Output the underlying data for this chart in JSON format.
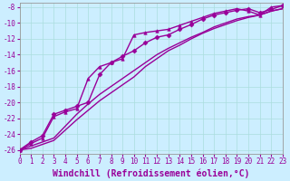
{
  "xlabel": "Windchill (Refroidissement éolien,°C)",
  "bg_color": "#cceeff",
  "line_color": "#990099",
  "xlim": [
    0,
    23
  ],
  "ylim": [
    -26.5,
    -7.5
  ],
  "xticks": [
    0,
    1,
    2,
    3,
    4,
    5,
    6,
    7,
    8,
    9,
    10,
    11,
    12,
    13,
    14,
    15,
    16,
    17,
    18,
    19,
    20,
    21,
    22,
    23
  ],
  "yticks": [
    -26,
    -24,
    -22,
    -20,
    -18,
    -16,
    -14,
    -12,
    -10,
    -8
  ],
  "series": [
    {
      "x": [
        0,
        1,
        2,
        3,
        4,
        5,
        6,
        7,
        8,
        9,
        10,
        11,
        12,
        13,
        14,
        15,
        16,
        17,
        18,
        19,
        20,
        21,
        22,
        23
      ],
      "y": [
        -26,
        -25.5,
        -25.0,
        -24.5,
        -23.0,
        -21.5,
        -20.2,
        -19.0,
        -18.0,
        -17.0,
        -16.0,
        -15.0,
        -14.0,
        -13.2,
        -12.5,
        -11.8,
        -11.2,
        -10.5,
        -10.0,
        -9.5,
        -9.2,
        -9.0,
        -8.5,
        -8.2
      ],
      "marker": null,
      "lw": 1.0
    },
    {
      "x": [
        0,
        1,
        2,
        3,
        4,
        5,
        6,
        7,
        8,
        9,
        10,
        11,
        12,
        13,
        14,
        15,
        16,
        17,
        18,
        19,
        20,
        21,
        22,
        23
      ],
      "y": [
        -26,
        -25.8,
        -25.3,
        -24.8,
        -23.5,
        -22.2,
        -21.0,
        -19.8,
        -18.8,
        -17.8,
        -16.8,
        -15.5,
        -14.5,
        -13.5,
        -12.8,
        -12.0,
        -11.3,
        -10.7,
        -10.2,
        -9.7,
        -9.3,
        -9.0,
        -8.5,
        -8.2
      ],
      "marker": null,
      "lw": 1.0
    },
    {
      "x": [
        0,
        1,
        2,
        3,
        4,
        5,
        6,
        7,
        8,
        9,
        10,
        11,
        12,
        13,
        14,
        15,
        16,
        17,
        18,
        19,
        20,
        21,
        22,
        23
      ],
      "y": [
        -26,
        -25.2,
        -24.5,
        -21.8,
        -21.2,
        -20.8,
        -17.0,
        -15.5,
        -15.0,
        -14.5,
        -11.5,
        -11.2,
        -11.0,
        -10.8,
        -10.3,
        -9.8,
        -9.3,
        -8.8,
        -8.5,
        -8.2,
        -8.5,
        -9.0,
        -8.0,
        -7.8
      ],
      "marker": "^",
      "lw": 1.0
    },
    {
      "x": [
        0,
        1,
        2,
        3,
        4,
        5,
        6,
        7,
        8,
        9,
        10,
        11,
        12,
        13,
        14,
        15,
        16,
        17,
        18,
        19,
        20,
        21,
        22,
        23
      ],
      "y": [
        -26,
        -25.0,
        -24.2,
        -21.5,
        -21.0,
        -20.5,
        -20.0,
        -16.5,
        -15.0,
        -14.2,
        -13.5,
        -12.5,
        -11.8,
        -11.5,
        -10.8,
        -10.2,
        -9.5,
        -9.0,
        -8.7,
        -8.4,
        -8.2,
        -8.7,
        -8.3,
        -7.8
      ],
      "marker": "D",
      "lw": 1.0
    }
  ],
  "grid_color": "#aadddd",
  "tick_fontsize": 5.5,
  "xlabel_fontsize": 7.0
}
